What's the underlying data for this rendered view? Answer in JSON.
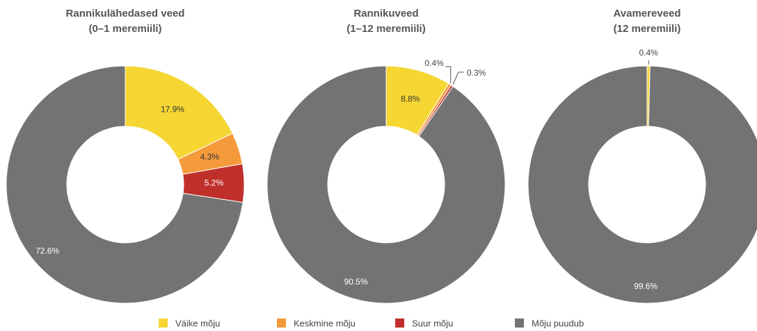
{
  "chart_data": [
    {
      "type": "pie",
      "title": "Rannikulähedased veed",
      "subtitle": "(0–1 meremiili)",
      "categories": [
        "Väike mõju",
        "Keskmine mõju",
        "Suur mõju",
        "Mõju puudub"
      ],
      "values": [
        17.9,
        4.3,
        5.2,
        72.6
      ],
      "value_labels": [
        "17.9%",
        "4.3%",
        "5.2%",
        "72.6%"
      ],
      "colors": [
        "#f5d633",
        "#f59a3b",
        "#c0302b",
        "#737373"
      ]
    },
    {
      "type": "pie",
      "title": "Rannikuveed",
      "subtitle": "(1–12 meremiili)",
      "categories": [
        "Väike mõju",
        "Keskmine mõju",
        "Suur mõju",
        "Mõju puudub"
      ],
      "values": [
        8.8,
        0.4,
        0.3,
        90.5
      ],
      "value_labels": [
        "8.8%",
        "0.4%",
        "0.3%",
        "90.5%"
      ],
      "colors": [
        "#f5d633",
        "#f59a3b",
        "#c0302b",
        "#737373"
      ]
    },
    {
      "type": "pie",
      "title": "Avamereveed",
      "subtitle": "(12 meremiili)",
      "categories": [
        "Väike mõju",
        "Keskmine mõju",
        "Suur mõju",
        "Mõju puudub"
      ],
      "values": [
        0.4,
        null,
        null,
        99.6
      ],
      "value_labels": [
        "0.4%",
        null,
        null,
        "99.6%"
      ],
      "colors": [
        "#f5d633",
        "#f59a3b",
        "#c0302b",
        "#737373"
      ]
    }
  ]
}
